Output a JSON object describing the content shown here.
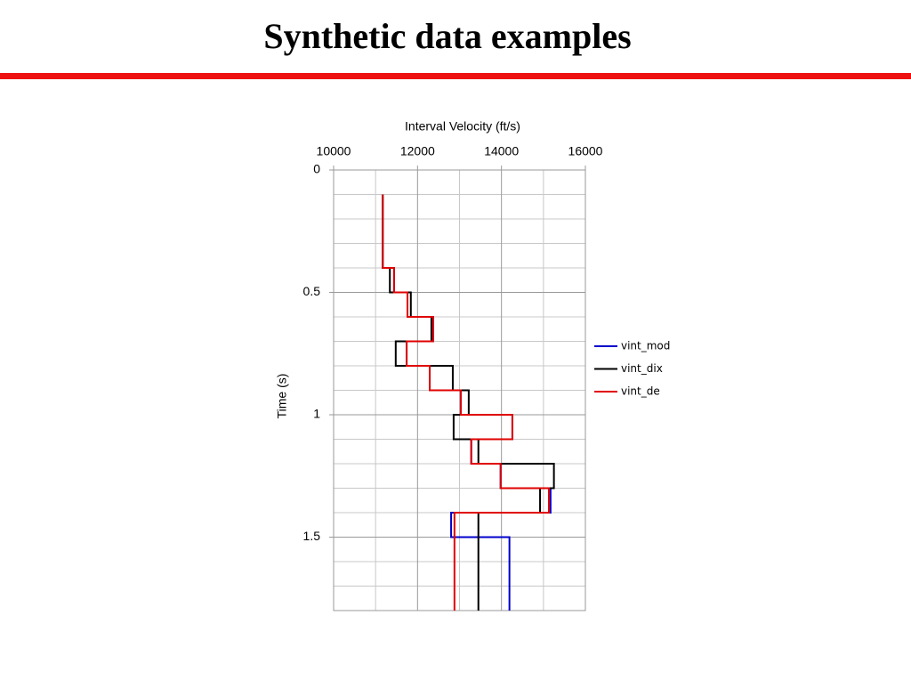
{
  "chart_data": {
    "type": "step",
    "title": "Synthetic data examples",
    "xlabel": "Interval Velocity (ft/s)",
    "ylabel": "Time (s)",
    "xlim": [
      10000,
      16000
    ],
    "xticks": [
      10000,
      12000,
      14000,
      16000
    ],
    "xminorticks": [
      11000,
      13000,
      15000
    ],
    "ylim": [
      0,
      1.8
    ],
    "yticks": [
      0,
      0.5,
      1,
      1.5
    ],
    "yminorticks": [
      0.1,
      0.2,
      0.3,
      0.4,
      0.6,
      0.7,
      0.8,
      0.9,
      1.1,
      1.2,
      1.3,
      1.4,
      1.6,
      1.7
    ],
    "y_inverted": true,
    "x_axis_top": true,
    "grid": true,
    "legend": "right",
    "series": [
      {
        "name": "vint_mod",
        "color": "#0000cc",
        "y": [
          0.1,
          0.4,
          0.5,
          0.6,
          0.7,
          0.8,
          0.9,
          1.0,
          1.1,
          1.2,
          1.3,
          1.4,
          1.5
        ],
        "values": [
          11170,
          11440,
          11760,
          12370,
          11740,
          12290,
          13030,
          14260,
          13280,
          13980,
          15170,
          12800,
          14190
        ]
      },
      {
        "name": "vint_dix",
        "color": "#000000",
        "y": [
          0.1,
          0.4,
          0.5,
          0.6,
          0.7,
          0.8,
          0.9,
          1.0,
          1.1,
          1.2,
          1.3,
          1.4
        ],
        "values": [
          11170,
          11340,
          11840,
          12330,
          11480,
          12840,
          13220,
          12860,
          13450,
          15250,
          14920,
          13450
        ]
      },
      {
        "name": "vint_de",
        "color": "#e00000",
        "y": [
          0.1,
          0.4,
          0.5,
          0.6,
          0.7,
          0.8,
          0.9,
          1.0,
          1.1,
          1.2,
          1.3,
          1.4
        ],
        "values": [
          11170,
          11440,
          11760,
          12370,
          11740,
          12290,
          13030,
          14260,
          13280,
          13980,
          15130,
          12880
        ]
      }
    ]
  }
}
